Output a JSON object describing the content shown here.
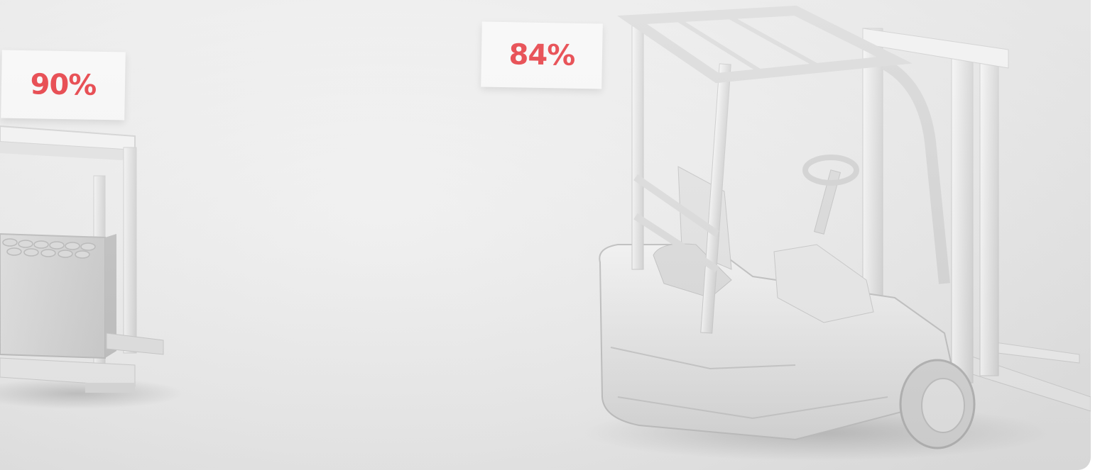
{
  "labels": {
    "battery_percentage": "90%",
    "forklift_percentage": "84%"
  },
  "colors": {
    "accent": "#e3242b",
    "background": "#e8e8e8",
    "card": "#f7f7f7"
  }
}
